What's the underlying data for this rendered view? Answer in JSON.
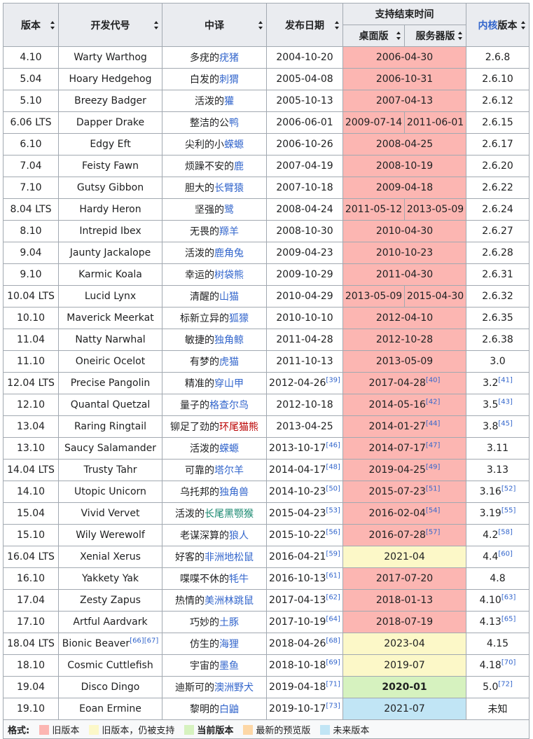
{
  "headers": {
    "version": "版本",
    "codename": "开发代号",
    "translation": "中译",
    "release": "发布日期",
    "eol": "支持结束时间",
    "desktop": "桌面版",
    "server": "服务器版",
    "kernel_link": "内核",
    "kernel_suffix": "版本"
  },
  "rows": [
    {
      "v": "4.10",
      "code": "Warty Warthog",
      "cn_pre": "多疣的",
      "cn_link": "疣猪",
      "rel": "2004-10-20",
      "eol": "2006-04-30",
      "k": "2.6.8"
    },
    {
      "v": "5.04",
      "code": "Hoary Hedgehog",
      "cn_pre": "白发的",
      "cn_link": "刺猬",
      "rel": "2005-04-08",
      "eol": "2006-10-31",
      "k": "2.6.10"
    },
    {
      "v": "5.10",
      "code": "Breezy Badger",
      "cn_pre": "活泼的",
      "cn_link": "獾",
      "rel": "2005-10-13",
      "eol": "2007-04-13",
      "k": "2.6.12"
    },
    {
      "v": "6.06 LTS",
      "code": "Dapper Drake",
      "cn_pre": "整洁的公",
      "cn_link": "鸭",
      "rel": "2006-06-01",
      "eol_d": "2009-07-14",
      "eol_s": "2011-06-01",
      "k": "2.6.15"
    },
    {
      "v": "6.10",
      "code": "Edgy Eft",
      "cn_pre": "尖利的小",
      "cn_link": "蝾螈",
      "rel": "2006-10-26",
      "eol": "2008-04-25",
      "k": "2.6.17"
    },
    {
      "v": "7.04",
      "code": "Feisty Fawn",
      "cn_pre": "烦躁不安的",
      "cn_link": "鹿",
      "rel": "2007-04-19",
      "eol": "2008-10-19",
      "k": "2.6.20"
    },
    {
      "v": "7.10",
      "code": "Gutsy Gibbon",
      "cn_pre": "胆大的",
      "cn_link": "长臂猿",
      "rel": "2007-10-18",
      "eol": "2009-04-18",
      "k": "2.6.22"
    },
    {
      "v": "8.04 LTS",
      "code": "Hardy Heron",
      "cn_pre": "坚强的",
      "cn_link": "鹭",
      "rel": "2008-04-24",
      "eol_d": "2011-05-12",
      "eol_s": "2013-05-09",
      "k": "2.6.24"
    },
    {
      "v": "8.10",
      "code": "Intrepid Ibex",
      "cn_pre": "无畏的",
      "cn_link": "羱羊",
      "rel": "2008-10-30",
      "eol": "2010-04-30",
      "k": "2.6.27"
    },
    {
      "v": "9.04",
      "code": "Jaunty Jackalope",
      "cn_pre": "活泼的",
      "cn_link": "鹿角兔",
      "rel": "2009-04-23",
      "eol": "2010-10-23",
      "k": "2.6.28"
    },
    {
      "v": "9.10",
      "code": "Karmic Koala",
      "cn_pre": "幸运的",
      "cn_link": "树袋熊",
      "rel": "2009-10-29",
      "eol": "2011-04-30",
      "k": "2.6.31"
    },
    {
      "v": "10.04 LTS",
      "code": "Lucid Lynx",
      "cn_pre": "清醒的",
      "cn_link": "山猫",
      "rel": "2010-04-29",
      "eol_d": "2013-05-09",
      "eol_s": "2015-04-30",
      "k": "2.6.32"
    },
    {
      "v": "10.10",
      "code": "Maverick Meerkat",
      "cn_pre": "标新立异的",
      "cn_link": "狐獴",
      "rel": "2010-10-10",
      "eol": "2012-04-10",
      "k": "2.6.35"
    },
    {
      "v": "11.04",
      "code": "Natty Narwhal",
      "cn_pre": "敏捷的",
      "cn_link": "独角鲸",
      "rel": "2011-04-28",
      "eol": "2012-10-28",
      "k": "2.6.38"
    },
    {
      "v": "11.10",
      "code": "Oneiric Ocelot",
      "cn_pre": "有梦的",
      "cn_link": "虎猫",
      "rel": "2011-10-13",
      "eol": "2013-05-09",
      "k": "3.0"
    },
    {
      "v": "12.04 LTS",
      "code": "Precise Pangolin",
      "cn_pre": "精准的",
      "cn_link": "穿山甲",
      "rel": "2012-04-26",
      "rel_ref": "[39]",
      "eol": "2017-04-28",
      "eol_ref": "[40]",
      "k": "3.2",
      "k_ref": "[41]"
    },
    {
      "v": "12.10",
      "code": "Quantal Quetzal",
      "cn_pre": "量子的",
      "cn_link": "格查尔鸟",
      "rel": "2012-10-18",
      "eol": "2014-05-16",
      "eol_ref": "[42]",
      "k": "3.5",
      "k_ref": "[43]"
    },
    {
      "v": "13.04",
      "code": "Raring Ringtail",
      "cn_pre": "铆足了劲的",
      "cn_link": "环尾猫熊",
      "link_color": "red",
      "rel": "2013-04-25",
      "eol": "2014-01-27",
      "eol_ref": "[44]",
      "k": "3.8",
      "k_ref": "[45]"
    },
    {
      "v": "13.10",
      "code": "Saucy Salamander",
      "cn_pre": "活泼的",
      "cn_link": "蝾螈",
      "rel": "2013-10-17",
      "rel_ref": "[46]",
      "eol": "2014-07-17",
      "eol_ref": "[47]",
      "k": "3.11"
    },
    {
      "v": "14.04 LTS",
      "code": "Trusty Tahr",
      "cn_pre": "可靠的",
      "cn_link": "塔尔羊",
      "rel": "2014-04-17",
      "rel_ref": "[48]",
      "eol": "2019-04-25",
      "eol_ref": "[49]",
      "k": "3.13"
    },
    {
      "v": "14.10",
      "code": "Utopic Unicorn",
      "cn_pre": "乌托邦的",
      "cn_link": "独角兽",
      "rel": "2014-10-23",
      "rel_ref": "[50]",
      "eol": "2015-07-23",
      "eol_ref": "[51]",
      "k": "3.16",
      "k_ref": "[52]"
    },
    {
      "v": "15.04",
      "code": "Vivid Vervet",
      "cn_pre": "活泼的",
      "cn_link": "长尾黑颚猴",
      "link_color": "green",
      "rel": "2015-04-23",
      "rel_ref": "[53]",
      "eol": "2016-02-04",
      "eol_ref": "[54]",
      "k": "3.19",
      "k_ref": "[55]"
    },
    {
      "v": "15.10",
      "code": "Wily Werewolf",
      "cn_pre": "老谋深算的",
      "cn_link": "狼人",
      "rel": "2015-10-22",
      "rel_ref": "[56]",
      "eol": "2016-07-28",
      "eol_ref": "[57]",
      "k": "4.2",
      "k_ref": "[58]"
    },
    {
      "v": "16.04 LTS",
      "code": "Xenial Xerus",
      "cn_pre": "好客的",
      "cn_link": "非洲地松鼠",
      "rel": "2016-04-21",
      "rel_ref": "[59]",
      "eol": "2021-04",
      "status": "supp",
      "k": "4.4",
      "k_ref": "[60]"
    },
    {
      "v": "16.10",
      "code": "Yakkety Yak",
      "cn_pre": "喋喋不休的",
      "cn_link": "牦牛",
      "rel": "2016-10-13",
      "rel_ref": "[61]",
      "eol": "2017-07-20",
      "k": "4.8"
    },
    {
      "v": "17.04",
      "code": "Zesty Zapus",
      "cn_pre": "热情的",
      "cn_link": "美洲林跳鼠",
      "rel": "2017-04-13",
      "rel_ref": "[62]",
      "eol": "2018-01-13",
      "k": "4.10",
      "k_ref": "[63]"
    },
    {
      "v": "17.10",
      "code": "Artful Aardvark",
      "cn_pre": "巧妙的",
      "cn_link": "土豚",
      "rel": "2017-10-19",
      "rel_ref": "[64]",
      "eol": "2018-07-19",
      "k": "4.13",
      "k_ref": "[65]"
    },
    {
      "v": "18.04 LTS",
      "code": "Bionic Beaver",
      "code_ref": "[66][67]",
      "cn_pre": "仿生的",
      "cn_link": "海狸",
      "rel": "2018-04-26",
      "rel_ref": "[68]",
      "eol": "2023-04",
      "status": "supp",
      "k": "4.15"
    },
    {
      "v": "18.10",
      "code": "Cosmic Cuttlefish",
      "cn_pre": "宇宙的",
      "cn_link": "墨鱼",
      "rel": "2018-10-18",
      "rel_ref": "[69]",
      "eol": "2019-07",
      "status": "supp",
      "k": "4.18",
      "k_ref": "[70]"
    },
    {
      "v": "19.04",
      "code": "Disco Dingo",
      "cn_pre": "迪斯可的",
      "cn_link": "澳洲野犬",
      "rel": "2019-04-18",
      "rel_ref": "[71]",
      "eol": "2020-01",
      "status": "curr",
      "k": "5.0",
      "k_ref": "[72]"
    },
    {
      "v": "19.10",
      "code": "Eoan Ermine",
      "cn_pre": "黎明的",
      "cn_link": "白鼬",
      "rel": "2019-10-17",
      "rel_ref": "[73]",
      "eol": "2021-07",
      "status": "fut",
      "k": "未知"
    }
  ],
  "legend": {
    "title": "格式:",
    "items": [
      {
        "label": "旧版本",
        "color": "#fcb6b2"
      },
      {
        "label": "旧版本，仍被支持",
        "color": "#fcf8c8"
      },
      {
        "label": "当前版本",
        "color": "#d6f2bf",
        "bold": true
      },
      {
        "label": "最新的预览版",
        "color": "#fdd7a6"
      },
      {
        "label": "未来版本",
        "color": "#c1e5f5"
      }
    ]
  }
}
